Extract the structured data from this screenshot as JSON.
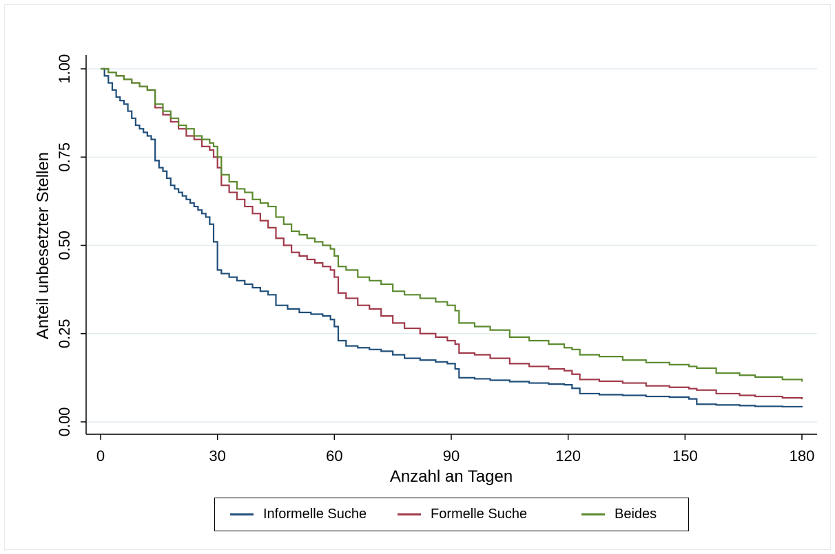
{
  "chart_data": {
    "type": "line",
    "title": "",
    "xlabel": "Anzahl an Tagen",
    "ylabel": "Anteil unbesetzter Stellen",
    "xlim": [
      0,
      180
    ],
    "ylim": [
      0,
      1
    ],
    "xticks": [
      0,
      30,
      60,
      90,
      120,
      150,
      180
    ],
    "yticks": [
      "0.00",
      "0.25",
      "0.50",
      "0.75",
      "1.00"
    ],
    "grid": "horizontal",
    "legend_position": "bottom",
    "step": true,
    "series": [
      {
        "name": "Informelle Suche",
        "color": "#1f4e79",
        "x": [
          0,
          1,
          2,
          3,
          4,
          5,
          6,
          7,
          8,
          9,
          10,
          11,
          12,
          13,
          14,
          15,
          16,
          17,
          18,
          19,
          20,
          21,
          22,
          23,
          24,
          25,
          26,
          27,
          28,
          29,
          30,
          31,
          33,
          35,
          37,
          39,
          41,
          43,
          45,
          48,
          51,
          54,
          57,
          59,
          60,
          61,
          63,
          66,
          69,
          72,
          75,
          78,
          82,
          86,
          89,
          91,
          92,
          96,
          100,
          105,
          110,
          115,
          119,
          121,
          123,
          128,
          134,
          140,
          146,
          151,
          153,
          158,
          164,
          168,
          175,
          180
        ],
        "values": [
          1.0,
          0.98,
          0.96,
          0.94,
          0.92,
          0.91,
          0.9,
          0.88,
          0.86,
          0.84,
          0.83,
          0.82,
          0.81,
          0.8,
          0.74,
          0.72,
          0.71,
          0.69,
          0.67,
          0.66,
          0.65,
          0.64,
          0.63,
          0.62,
          0.61,
          0.6,
          0.59,
          0.58,
          0.56,
          0.51,
          0.43,
          0.42,
          0.41,
          0.4,
          0.39,
          0.38,
          0.37,
          0.36,
          0.33,
          0.32,
          0.31,
          0.305,
          0.3,
          0.29,
          0.27,
          0.23,
          0.215,
          0.21,
          0.205,
          0.2,
          0.19,
          0.18,
          0.175,
          0.17,
          0.165,
          0.15,
          0.125,
          0.122,
          0.118,
          0.114,
          0.11,
          0.107,
          0.105,
          0.095,
          0.08,
          0.077,
          0.075,
          0.072,
          0.07,
          0.065,
          0.05,
          0.048,
          0.046,
          0.044,
          0.043,
          0.042
        ]
      },
      {
        "name": "Formelle Suche",
        "color": "#a03a4a",
        "x": [
          0,
          2,
          4,
          6,
          8,
          10,
          12,
          14,
          16,
          18,
          20,
          22,
          24,
          26,
          28,
          29,
          30,
          31,
          33,
          35,
          37,
          39,
          41,
          43,
          45,
          47,
          49,
          51,
          53,
          55,
          57,
          59,
          60,
          61,
          63,
          66,
          69,
          72,
          75,
          78,
          82,
          86,
          89,
          91,
          92,
          96,
          100,
          105,
          110,
          115,
          119,
          121,
          123,
          128,
          134,
          140,
          146,
          151,
          153,
          158,
          164,
          168,
          175,
          180
        ],
        "values": [
          1.0,
          0.99,
          0.98,
          0.97,
          0.96,
          0.95,
          0.94,
          0.89,
          0.87,
          0.85,
          0.83,
          0.81,
          0.8,
          0.78,
          0.77,
          0.75,
          0.72,
          0.67,
          0.65,
          0.63,
          0.61,
          0.59,
          0.57,
          0.55,
          0.52,
          0.5,
          0.48,
          0.47,
          0.46,
          0.45,
          0.44,
          0.43,
          0.41,
          0.365,
          0.35,
          0.33,
          0.32,
          0.3,
          0.28,
          0.265,
          0.25,
          0.24,
          0.23,
          0.22,
          0.195,
          0.19,
          0.18,
          0.165,
          0.157,
          0.15,
          0.145,
          0.135,
          0.12,
          0.115,
          0.11,
          0.102,
          0.098,
          0.094,
          0.09,
          0.08,
          0.075,
          0.072,
          0.068,
          0.064
        ]
      },
      {
        "name": "Beides",
        "color": "#5b8a2e",
        "x": [
          0,
          2,
          4,
          6,
          8,
          10,
          12,
          14,
          16,
          18,
          20,
          22,
          24,
          26,
          28,
          29,
          30,
          31,
          33,
          35,
          37,
          39,
          41,
          43,
          45,
          47,
          49,
          51,
          53,
          55,
          57,
          59,
          60,
          61,
          63,
          66,
          69,
          72,
          75,
          78,
          82,
          86,
          89,
          91,
          92,
          96,
          100,
          105,
          110,
          115,
          119,
          121,
          123,
          128,
          134,
          140,
          146,
          151,
          153,
          158,
          164,
          168,
          175,
          180
        ],
        "values": [
          1.0,
          0.99,
          0.98,
          0.97,
          0.96,
          0.95,
          0.94,
          0.9,
          0.88,
          0.86,
          0.84,
          0.83,
          0.81,
          0.8,
          0.79,
          0.78,
          0.75,
          0.7,
          0.68,
          0.66,
          0.65,
          0.63,
          0.62,
          0.61,
          0.58,
          0.56,
          0.54,
          0.53,
          0.52,
          0.51,
          0.5,
          0.49,
          0.47,
          0.44,
          0.43,
          0.41,
          0.4,
          0.39,
          0.37,
          0.36,
          0.35,
          0.34,
          0.33,
          0.315,
          0.28,
          0.27,
          0.26,
          0.24,
          0.23,
          0.22,
          0.21,
          0.205,
          0.19,
          0.185,
          0.175,
          0.168,
          0.162,
          0.157,
          0.152,
          0.138,
          0.132,
          0.127,
          0.12,
          0.114
        ]
      }
    ]
  }
}
